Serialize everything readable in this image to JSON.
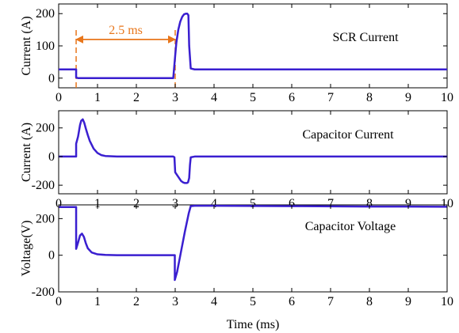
{
  "chart_data": [
    {
      "type": "line",
      "title": "SCR Current",
      "xlabel": "",
      "ylabel": "Current (A)",
      "xlim": [
        0,
        10
      ],
      "ylim": [
        -30,
        230
      ],
      "xticks": [
        0,
        1,
        2,
        3,
        4,
        5,
        6,
        7,
        8,
        9,
        10
      ],
      "yticks": [
        0,
        100,
        200
      ],
      "grid": false,
      "line_color": "#3a1fd0",
      "series": [
        {
          "x": [
            0,
            0.45,
            0.45,
            0.5,
            1,
            2,
            2.95,
            3.0,
            3.03,
            3.08,
            3.13,
            3.18,
            3.23,
            3.28,
            3.31,
            3.34,
            3.36,
            3.4,
            3.5,
            4,
            6,
            8,
            10
          ],
          "y": [
            27,
            27,
            2,
            0,
            0,
            0,
            0,
            70,
            110,
            150,
            175,
            190,
            198,
            200,
            200,
            195,
            100,
            30,
            27,
            27,
            27,
            27,
            27
          ]
        }
      ],
      "annotations": [
        {
          "text": "2.5 ms",
          "type": "dimension",
          "x1": 0.45,
          "x2": 3.0,
          "y": 120,
          "color": "#e8761b"
        }
      ]
    },
    {
      "type": "line",
      "title": "Capacitor Current",
      "xlabel": "",
      "ylabel": "Current (A)",
      "xlim": [
        0,
        10
      ],
      "ylim": [
        -260,
        320
      ],
      "xticks": [
        0,
        1,
        2,
        3,
        4,
        5,
        6,
        7,
        8,
        9,
        10
      ],
      "yticks": [
        -200,
        0,
        200
      ],
      "grid": false,
      "line_color": "#3a1fd0",
      "series": [
        {
          "x": [
            0,
            0.45,
            0.45,
            0.5,
            0.55,
            0.58,
            0.62,
            0.66,
            0.7,
            0.75,
            0.8,
            0.9,
            1.0,
            1.1,
            1.2,
            1.5,
            2.0,
            2.95,
            2.98,
            3.0,
            3.05,
            3.1,
            3.15,
            3.2,
            3.25,
            3.3,
            3.33,
            3.36,
            3.38,
            3.4,
            3.5,
            4,
            6,
            8,
            10
          ],
          "y": [
            0,
            0,
            90,
            140,
            220,
            250,
            260,
            235,
            195,
            150,
            110,
            55,
            25,
            10,
            4,
            0,
            0,
            0,
            -5,
            -110,
            -130,
            -150,
            -170,
            -180,
            -185,
            -185,
            -180,
            -150,
            -60,
            -5,
            0,
            0,
            0,
            0,
            0
          ]
        }
      ]
    },
    {
      "type": "line",
      "title": "Capacitor Voltage",
      "xlabel": "Time (ms)",
      "ylabel": "Voltage(V)",
      "xlim": [
        0,
        10
      ],
      "ylim": [
        -200,
        275
      ],
      "xticks": [
        0,
        1,
        2,
        3,
        4,
        5,
        6,
        7,
        8,
        9,
        10
      ],
      "yticks": [
        -200,
        0,
        200
      ],
      "grid": false,
      "line_color": "#3a1fd0",
      "series": [
        {
          "x": [
            0,
            0.45,
            0.45,
            0.5,
            0.55,
            0.6,
            0.65,
            0.7,
            0.75,
            0.85,
            1.0,
            1.2,
            1.5,
            2.0,
            2.5,
            2.99,
            2.99,
            3.05,
            3.15,
            3.25,
            3.35,
            3.4,
            3.5,
            4,
            6,
            8,
            10
          ],
          "y": [
            263,
            263,
            35,
            70,
            108,
            118,
            100,
            65,
            38,
            15,
            5,
            2,
            0,
            0,
            0,
            0,
            -135,
            -90,
            20,
            130,
            230,
            268,
            270,
            270,
            268,
            266,
            265
          ]
        }
      ]
    }
  ]
}
